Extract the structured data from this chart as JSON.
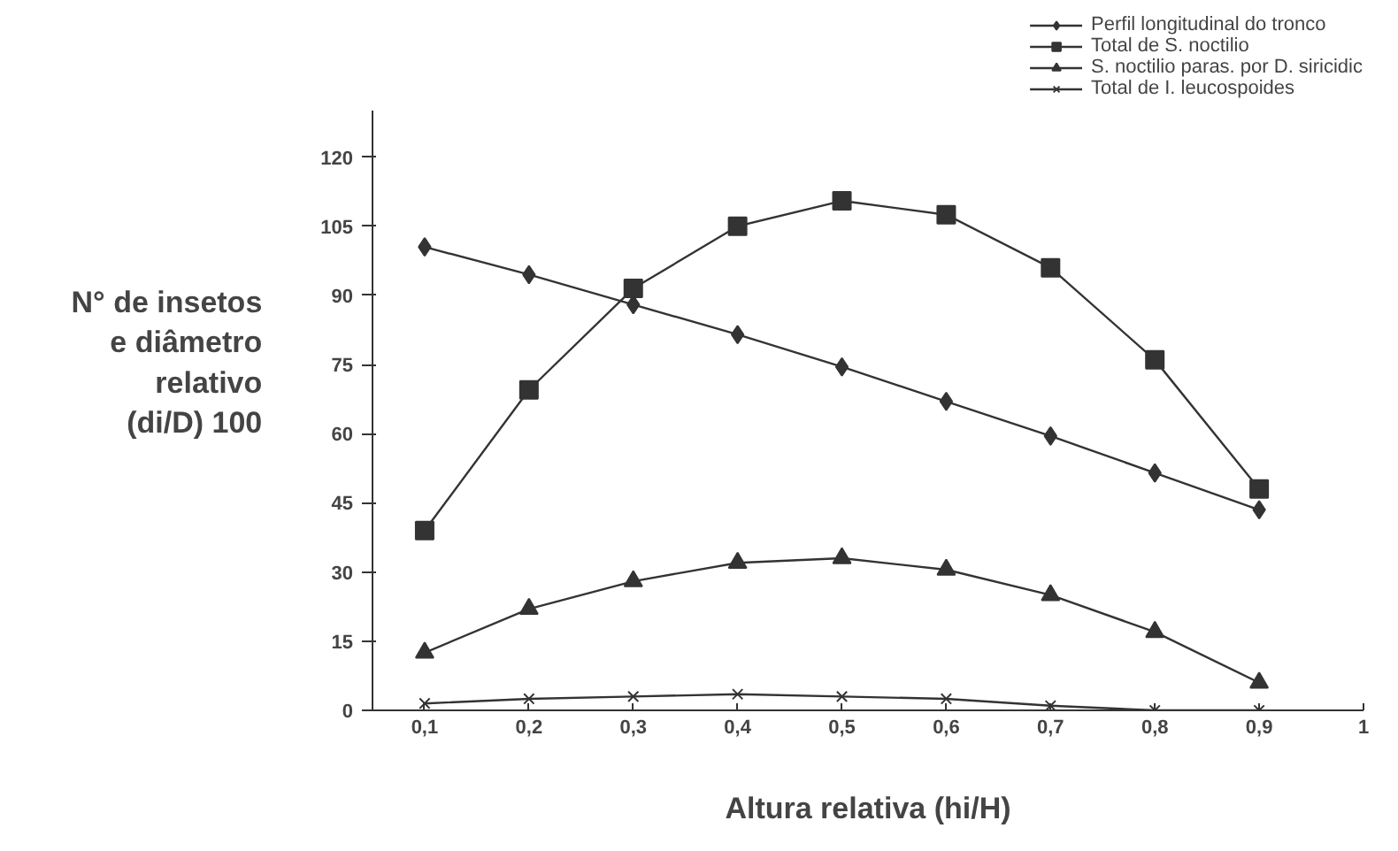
{
  "chart_data": {
    "type": "line",
    "xlabel": "Altura relativa (hi/H)",
    "ylabel": "N° de insetos\ne diâmetro\nrelativo\n(di/D) 100",
    "x": [
      0.1,
      0.2,
      0.3,
      0.4,
      0.5,
      0.6,
      0.7,
      0.8,
      0.9
    ],
    "series": [
      {
        "name": "Perfil longitudinal do tronco",
        "color": "#333333",
        "marker": "diamond",
        "values": [
          100.5,
          94.5,
          88,
          81.5,
          74.5,
          67,
          59.5,
          51.5,
          43.5
        ]
      },
      {
        "name": "Total de S. noctilio",
        "color": "#333333",
        "marker": "square",
        "values": [
          39,
          69.5,
          91.5,
          105,
          110.5,
          107.5,
          96,
          76,
          48
        ]
      },
      {
        "name": "S. noctilio paras. por D. siricidic",
        "color": "#333333",
        "marker": "triangle",
        "values": [
          12.5,
          22,
          28,
          32,
          33,
          30.5,
          25,
          17,
          6
        ]
      },
      {
        "name": "Total de I. leucospoides",
        "color": "#333333",
        "marker": "cross",
        "values": [
          1.5,
          2.5,
          3,
          3.5,
          3,
          2.5,
          1,
          0,
          0
        ]
      }
    ],
    "xlim": [
      0.05,
      1
    ],
    "xticks": [
      {
        "value": 0.1,
        "label": "0,1"
      },
      {
        "value": 0.2,
        "label": "0,2"
      },
      {
        "value": 0.3,
        "label": "0,3"
      },
      {
        "value": 0.4,
        "label": "0,4"
      },
      {
        "value": 0.5,
        "label": "0,5"
      },
      {
        "value": 0.6,
        "label": "0,6"
      },
      {
        "value": 0.7,
        "label": "0,7"
      },
      {
        "value": 0.8,
        "label": "0,8"
      },
      {
        "value": 0.9,
        "label": "0,9"
      },
      1
    ],
    "ylim": [
      0,
      130
    ],
    "yticks": [
      0,
      15,
      30,
      45,
      60,
      75,
      90,
      105,
      120
    ],
    "grid": false,
    "legend": "top right",
    "line_style": "solid"
  }
}
